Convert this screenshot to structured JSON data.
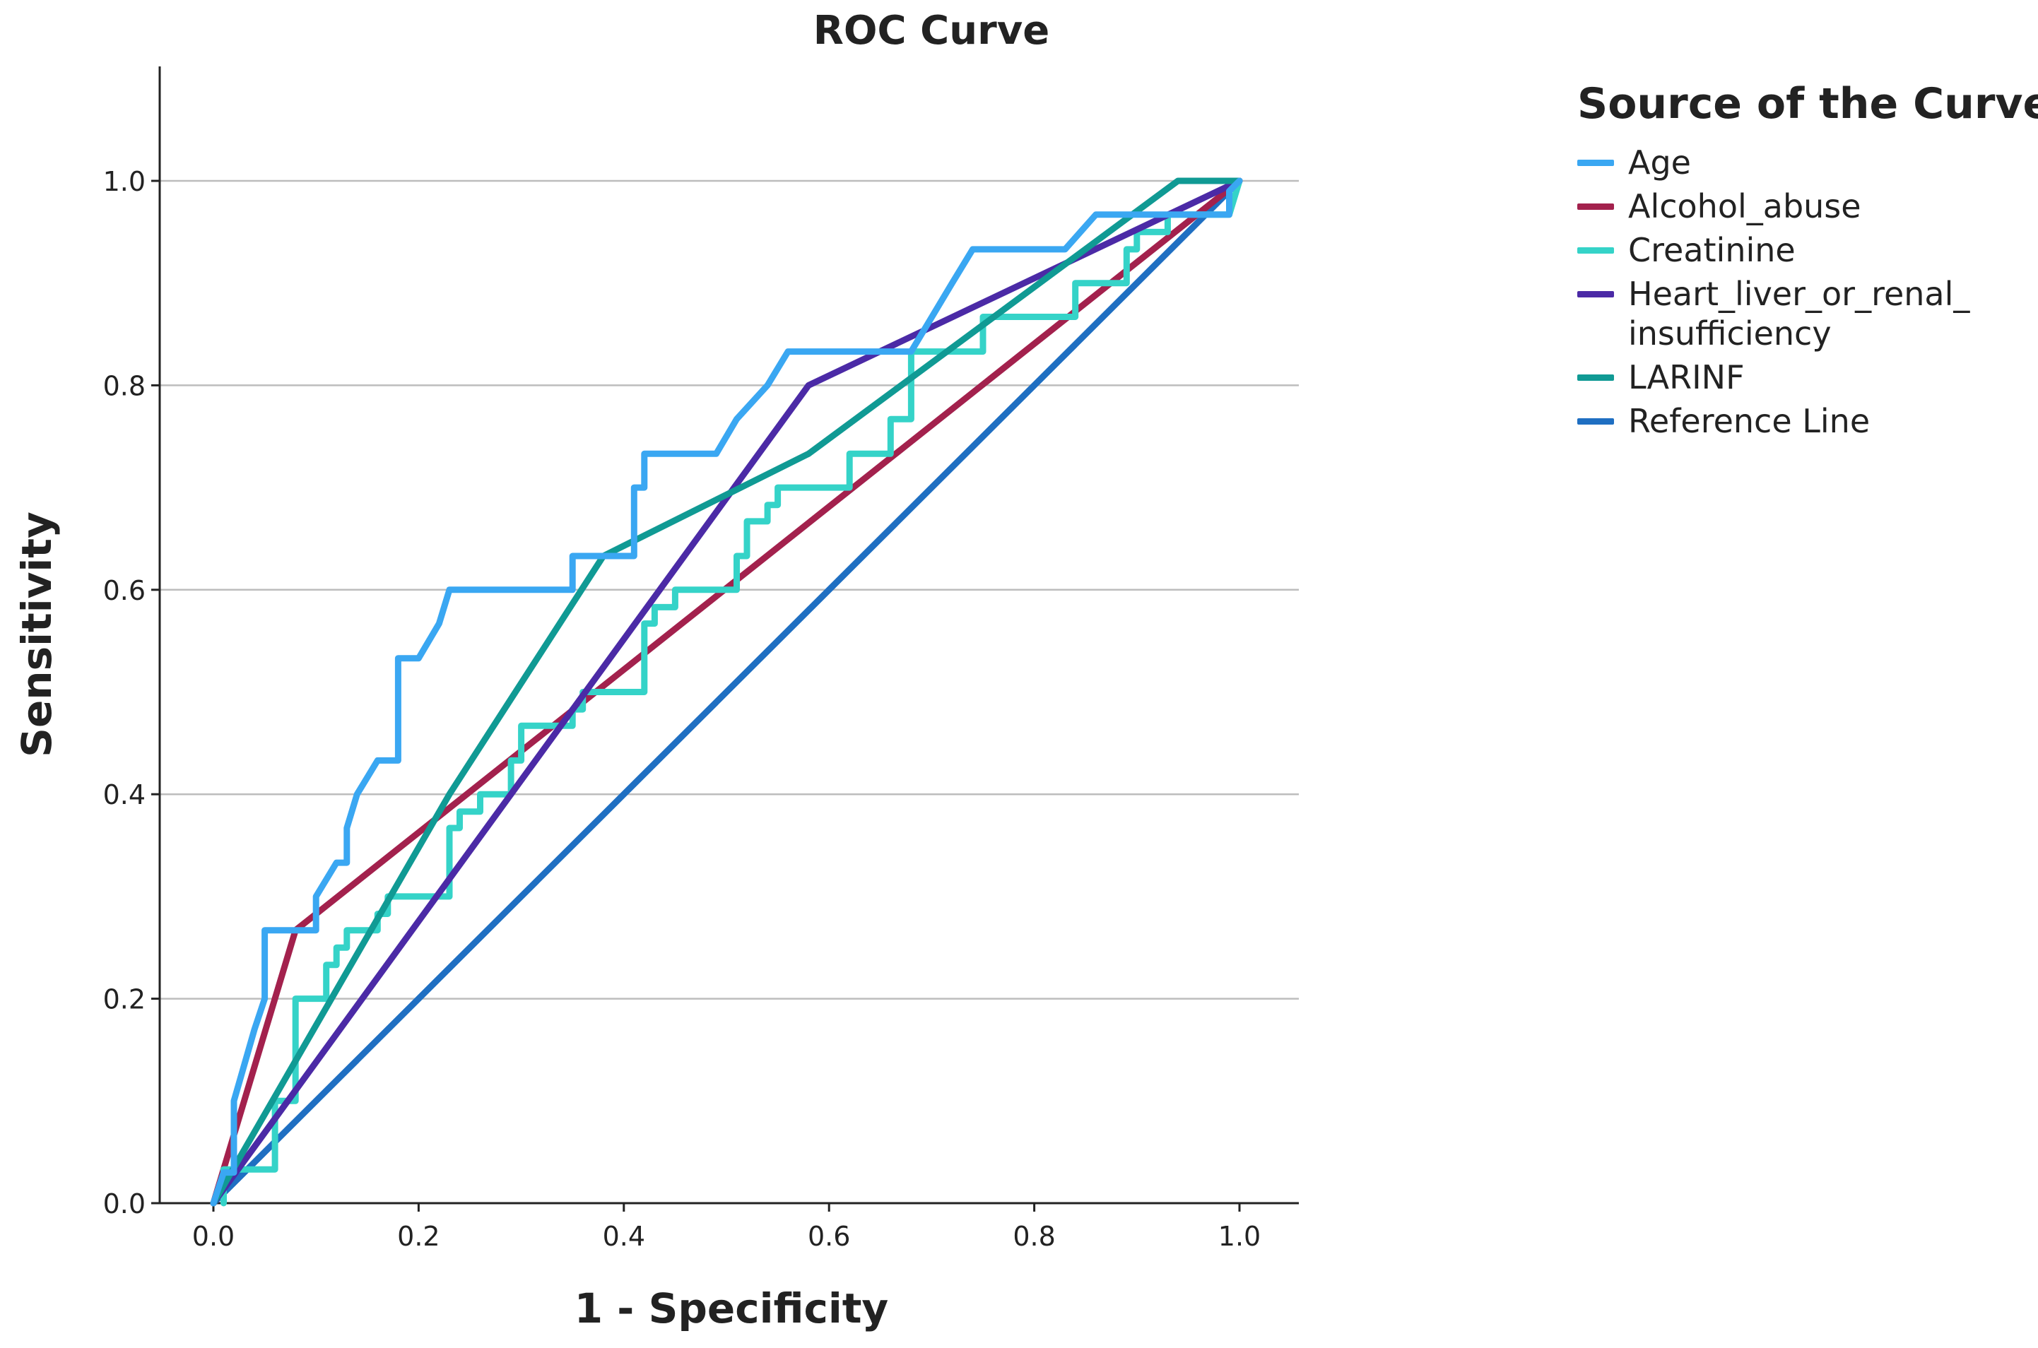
{
  "chart_data": {
    "type": "line",
    "title": "ROC Curve",
    "xlabel": "1 - Specificity",
    "ylabel": "Sensitivity",
    "xlim": [
      0,
      1
    ],
    "ylim": [
      0,
      1.1
    ],
    "xticks": [
      0.0,
      0.2,
      0.4,
      0.6,
      0.8,
      1.0
    ],
    "yticks": [
      0.0,
      0.2,
      0.4,
      0.6,
      0.8,
      1.0
    ],
    "xtick_labels": [
      "0.0",
      "0.2",
      "0.4",
      "0.6",
      "0.8",
      "1.0"
    ],
    "ytick_labels": [
      "0.0",
      "0.2",
      "0.4",
      "0.6",
      "0.8",
      "1.0"
    ],
    "grid": "horizontal",
    "legend_title": "Source of the Curve",
    "legend_position": "right",
    "series": [
      {
        "name": "Age",
        "color": "#3aa7f2",
        "x": [
          0.0,
          0.01,
          0.02,
          0.02,
          0.04,
          0.05,
          0.05,
          0.1,
          0.1,
          0.12,
          0.13,
          0.13,
          0.14,
          0.16,
          0.18,
          0.18,
          0.2,
          0.22,
          0.23,
          0.23,
          0.26,
          0.35,
          0.35,
          0.41,
          0.41,
          0.42,
          0.42,
          0.49,
          0.51,
          0.54,
          0.56,
          0.62,
          0.68,
          0.72,
          0.74,
          0.83,
          0.86,
          0.87,
          0.89,
          0.9,
          0.93,
          0.94,
          0.99,
          0.99,
          1.0,
          1.0
        ],
        "y": [
          0.0,
          0.03,
          0.03,
          0.1,
          0.17,
          0.2,
          0.267,
          0.267,
          0.3,
          0.333,
          0.333,
          0.367,
          0.4,
          0.433,
          0.433,
          0.533,
          0.533,
          0.567,
          0.6,
          0.6,
          0.6,
          0.6,
          0.633,
          0.633,
          0.7,
          0.7,
          0.733,
          0.733,
          0.767,
          0.8,
          0.833,
          0.833,
          0.833,
          0.9,
          0.933,
          0.933,
          0.967,
          0.967,
          0.967,
          0.967,
          0.967,
          0.967,
          0.967,
          0.99,
          1.0,
          1.0
        ]
      },
      {
        "name": "Alcohol_abuse",
        "color": "#a3214d",
        "x": [
          0.0,
          0.08,
          1.0
        ],
        "y": [
          0.0,
          0.267,
          1.0
        ]
      },
      {
        "name": "Creatinine",
        "color": "#35d3c8",
        "x": [
          0.01,
          0.01,
          0.06,
          0.06,
          0.08,
          0.08,
          0.11,
          0.11,
          0.12,
          0.12,
          0.13,
          0.13,
          0.16,
          0.16,
          0.17,
          0.17,
          0.23,
          0.23,
          0.24,
          0.24,
          0.26,
          0.26,
          0.29,
          0.29,
          0.3,
          0.3,
          0.35,
          0.35,
          0.36,
          0.36,
          0.42,
          0.42,
          0.43,
          0.43,
          0.45,
          0.45,
          0.51,
          0.51,
          0.52,
          0.52,
          0.54,
          0.54,
          0.55,
          0.55,
          0.62,
          0.62,
          0.66,
          0.66,
          0.68,
          0.68,
          0.75,
          0.75,
          0.84,
          0.84,
          0.89,
          0.89,
          0.9,
          0.9,
          0.93,
          0.93,
          0.99,
          1.0
        ],
        "y": [
          0.0,
          0.033,
          0.033,
          0.1,
          0.1,
          0.2,
          0.2,
          0.233,
          0.233,
          0.25,
          0.25,
          0.267,
          0.267,
          0.283,
          0.283,
          0.3,
          0.3,
          0.367,
          0.367,
          0.383,
          0.383,
          0.4,
          0.4,
          0.433,
          0.433,
          0.467,
          0.467,
          0.483,
          0.483,
          0.5,
          0.5,
          0.567,
          0.567,
          0.583,
          0.583,
          0.6,
          0.6,
          0.633,
          0.633,
          0.667,
          0.667,
          0.683,
          0.683,
          0.7,
          0.7,
          0.733,
          0.733,
          0.767,
          0.767,
          0.833,
          0.833,
          0.867,
          0.867,
          0.9,
          0.9,
          0.933,
          0.933,
          0.95,
          0.95,
          0.967,
          0.967,
          1.0
        ]
      },
      {
        "name": "Heart_liver_or_renal_\ninsufficiency",
        "color": "#4b2aa6",
        "x": [
          0.0,
          0.58,
          1.0
        ],
        "y": [
          0.0,
          0.8,
          1.0
        ]
      },
      {
        "name": "LARINF",
        "color": "#109a94",
        "x": [
          0.0,
          0.23,
          0.38,
          0.58,
          0.94,
          1.0
        ],
        "y": [
          0.0,
          0.4,
          0.633,
          0.733,
          1.0,
          1.0
        ]
      },
      {
        "name": "Reference Line",
        "color": "#1f6fc2",
        "x": [
          0.0,
          1.0
        ],
        "y": [
          0.0,
          1.0
        ]
      }
    ]
  }
}
